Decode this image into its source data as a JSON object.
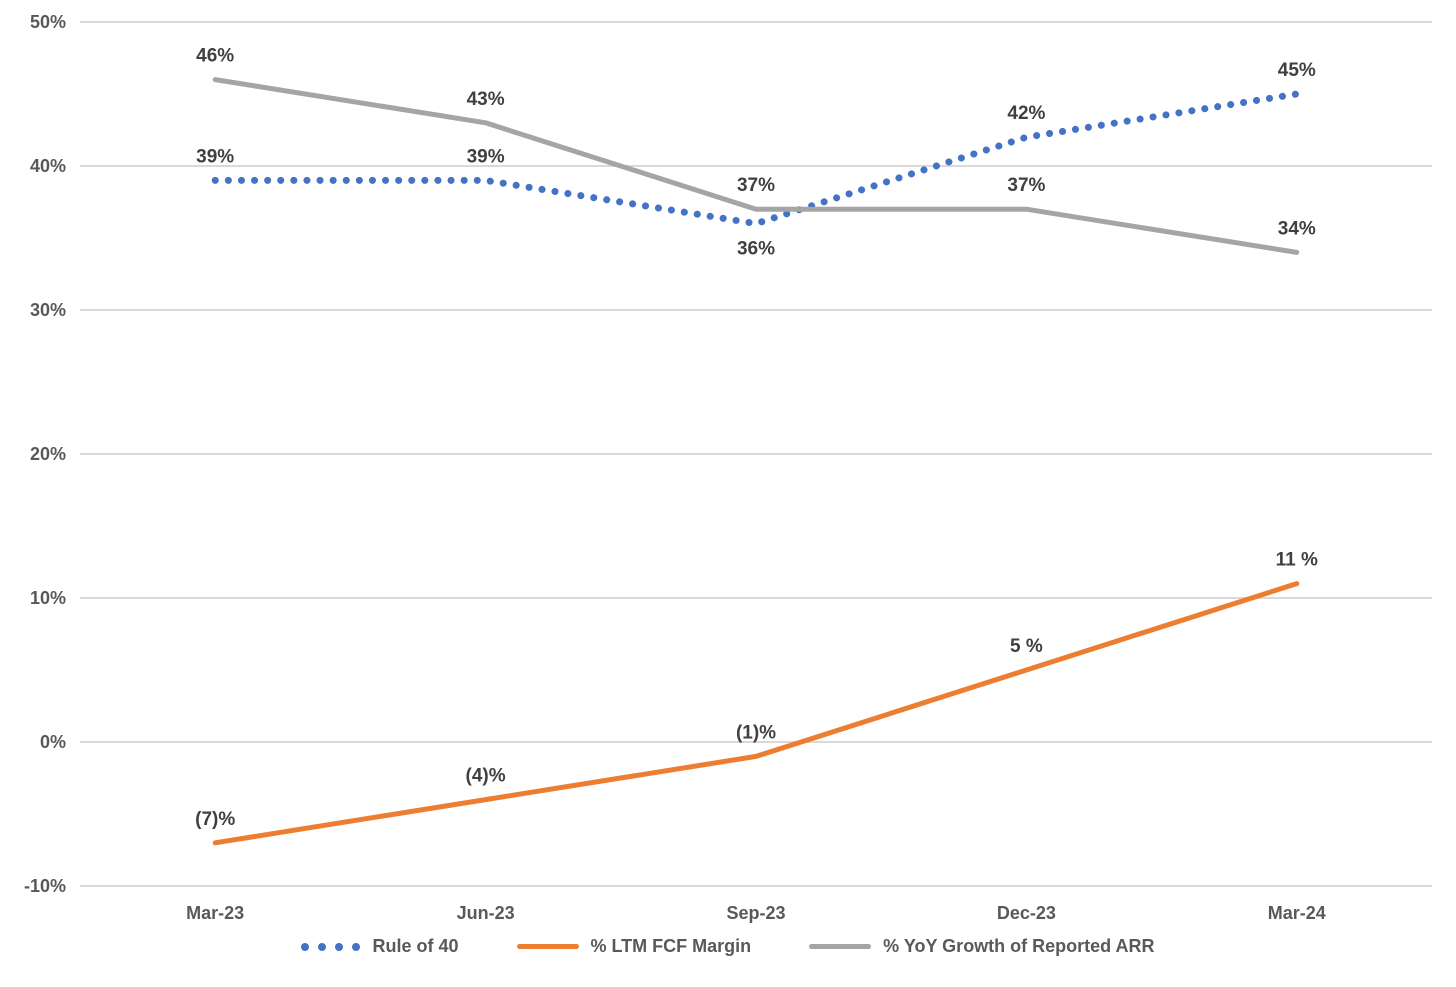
{
  "chart_data": {
    "type": "line",
    "categories": [
      "Mar-23",
      "Jun-23",
      "Sep-23",
      "Dec-23",
      "Mar-24"
    ],
    "series": [
      {
        "name": "Rule of 40",
        "color": "#4472C4",
        "style": "dotted",
        "values": [
          39,
          39,
          36,
          42,
          45
        ],
        "labels": [
          "39%",
          "39%",
          "36%",
          "42%",
          "45%"
        ],
        "label_placement": [
          "above",
          "above",
          "below",
          "above",
          "above"
        ]
      },
      {
        "name": "% LTM FCF Margin",
        "color": "#ED7D31",
        "style": "solid",
        "values": [
          -7,
          -4,
          -1,
          5,
          11
        ],
        "labels": [
          "(7)%",
          "(4)%",
          "(1)%",
          "5 %",
          "11 %"
        ],
        "label_placement": [
          "above",
          "above",
          "above",
          "above",
          "above"
        ]
      },
      {
        "name": "% YoY Growth of Reported ARR",
        "color": "#A5A5A5",
        "style": "solid",
        "values": [
          46,
          43,
          37,
          37,
          34
        ],
        "labels": [
          "46%",
          "43%",
          "37%",
          "37%",
          "34%"
        ],
        "label_placement": [
          "above",
          "above",
          "above",
          "above",
          "above"
        ]
      }
    ],
    "y_axis": {
      "min": -10,
      "max": 50,
      "step": 10,
      "tick_values": [
        50,
        40,
        30,
        20,
        10,
        0,
        -10
      ],
      "tick_labels": [
        "50%",
        "40%",
        "30%",
        "20%",
        "10%",
        "0%",
        "-10%"
      ]
    },
    "grid": true,
    "legend_position": "bottom",
    "colors": {
      "gridline": "#D9D9D9",
      "tick_text": "#595959",
      "data_label_text": "#404040"
    }
  }
}
